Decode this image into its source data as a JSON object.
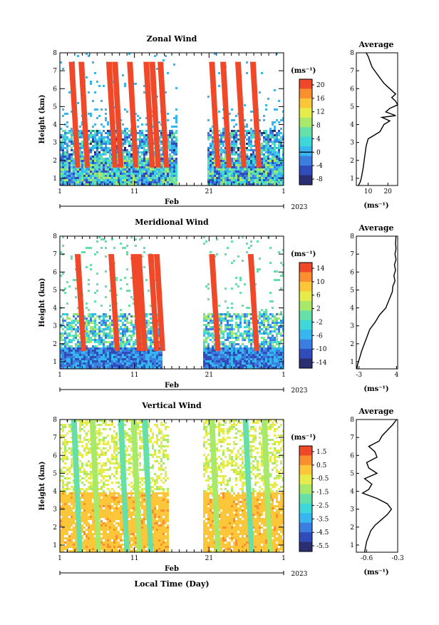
{
  "page": {
    "common_xlabel": "Local Time (Day)",
    "month_label": "Feb",
    "year_label": "2023"
  },
  "colors": {
    "scale": [
      "#2b2f72",
      "#2f4cb8",
      "#3b7ee0",
      "#37b6f0",
      "#3fd8d8",
      "#66e0a8",
      "#a8e86a",
      "#e6ec4a",
      "#fbc63a",
      "#f98f2e",
      "#f0492a"
    ]
  },
  "chart_data": [
    {
      "type": "heatmap",
      "title": "Zonal Wind",
      "xlabel": "Local Time (Day)",
      "ylabel": "Height (km)",
      "x_ticks": [
        "1",
        "11",
        "21",
        "1"
      ],
      "y_ticks": [
        "1",
        "2",
        "3",
        "4",
        "5",
        "6",
        "7",
        "8"
      ],
      "ylim": [
        0.6,
        8
      ],
      "x_range_days": [
        1,
        31
      ],
      "no_data_gap": [
        16.5,
        20.5
      ],
      "colorbar": {
        "unit": "(ms⁻¹)",
        "labels": [
          "20",
          "16",
          "12",
          "8",
          "4",
          "0",
          "-4",
          "-8"
        ],
        "zero_line": "0"
      },
      "profile": {
        "title": "Average",
        "xlabel": "(ms⁻¹)",
        "x_ticks": [
          "10",
          "20"
        ],
        "xlim": [
          4,
          25
        ],
        "height": [
          0.6,
          0.8,
          1.0,
          1.3,
          1.6,
          2.0,
          2.4,
          2.8,
          3.2,
          3.4,
          3.6,
          3.8,
          4.0,
          4.2,
          4.4,
          4.5,
          4.7,
          4.9,
          5.1,
          5.3,
          5.5,
          5.7,
          5.9,
          6.1,
          6.3,
          6.6,
          6.9,
          7.2,
          7.5,
          7.8,
          8.0
        ],
        "values": [
          5,
          6,
          6.5,
          7,
          7.5,
          8,
          8.5,
          9,
          10,
          13,
          16,
          17,
          18,
          21,
          17,
          24,
          19,
          21,
          25,
          24,
          22,
          24,
          22,
          20,
          18,
          16,
          14,
          12,
          11,
          10,
          9
        ]
      }
    },
    {
      "type": "heatmap",
      "title": "Meridional Wind",
      "xlabel": "Local Time (Day)",
      "ylabel": "Height (km)",
      "x_ticks": [
        "1",
        "11",
        "21",
        "1"
      ],
      "y_ticks": [
        "1",
        "2",
        "3",
        "4",
        "5",
        "6",
        "7",
        "8"
      ],
      "ylim": [
        0.6,
        8
      ],
      "x_range_days": [
        1,
        31
      ],
      "no_data_gap": [
        14.5,
        20.0
      ],
      "colorbar": {
        "unit": "(ms⁻¹)",
        "labels": [
          "14",
          "10",
          "6",
          "2",
          "-2",
          "-6",
          "-10",
          "-14"
        ],
        "zero_line": "0"
      },
      "profile": {
        "title": "Average",
        "xlabel": "(ms⁻¹)",
        "x_ticks": [
          "-3",
          "4"
        ],
        "xlim": [
          -3.5,
          4.2
        ],
        "height": [
          0.6,
          0.8,
          1.0,
          1.3,
          1.6,
          2.0,
          2.4,
          2.8,
          3.2,
          3.6,
          4.0,
          4.3,
          4.6,
          4.9,
          5.2,
          5.5,
          5.8,
          6.1,
          6.4,
          6.7,
          7.0,
          7.3,
          7.6,
          8.0
        ],
        "values": [
          -3.4,
          -3.3,
          -3.1,
          -2.8,
          -2.5,
          -2.0,
          -1.5,
          -1.0,
          0.0,
          0.8,
          2.0,
          2.4,
          2.8,
          3.2,
          3.3,
          3.7,
          3.5,
          3.8,
          3.6,
          3.9,
          3.7,
          3.9,
          3.8,
          3.9
        ]
      }
    },
    {
      "type": "heatmap",
      "title": "Vertical Wind",
      "xlabel": "Local Time (Day)",
      "ylabel": "Height (km)",
      "x_ticks": [
        "1",
        "11",
        "21",
        "1"
      ],
      "y_ticks": [
        "1",
        "2",
        "3",
        "4",
        "5",
        "6",
        "7",
        "8"
      ],
      "ylim": [
        0.6,
        8
      ],
      "x_range_days": [
        1,
        31
      ],
      "no_data_gap": [
        15.5,
        20.0
      ],
      "colorbar": {
        "unit": "(ms⁻¹)",
        "labels": [
          "1.5",
          "0.5",
          "-0.5",
          "-1.5",
          "-2.5",
          "-3.5",
          "-4.5",
          "-5.5"
        ]
      },
      "profile": {
        "title": "Average",
        "xlabel": "(ms⁻¹)",
        "x_ticks": [
          "-0.6",
          "-0.3"
        ],
        "xlim": [
          -0.7,
          -0.3
        ],
        "height": [
          0.6,
          0.9,
          1.2,
          1.5,
          1.8,
          2.1,
          2.4,
          2.7,
          3.0,
          3.3,
          3.6,
          3.9,
          4.1,
          4.4,
          4.7,
          5.0,
          5.3,
          5.6,
          5.9,
          6.2,
          6.5,
          6.8,
          7.1,
          7.4,
          7.7,
          8.0
        ],
        "values": [
          -0.62,
          -0.61,
          -0.6,
          -0.58,
          -0.56,
          -0.52,
          -0.46,
          -0.4,
          -0.36,
          -0.4,
          -0.5,
          -0.64,
          -0.58,
          -0.55,
          -0.62,
          -0.5,
          -0.58,
          -0.6,
          -0.5,
          -0.52,
          -0.58,
          -0.48,
          -0.45,
          -0.4,
          -0.35,
          -0.31
        ]
      }
    }
  ]
}
